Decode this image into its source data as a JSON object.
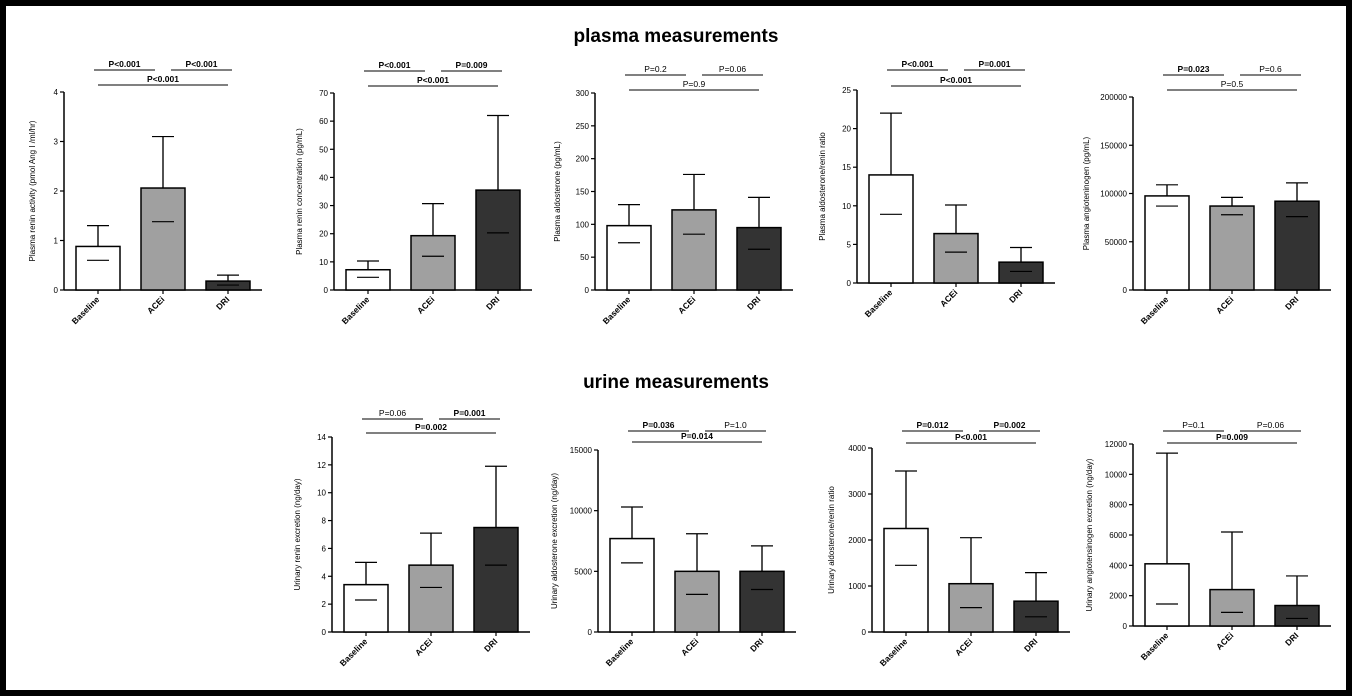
{
  "section_titles": {
    "plasma": "plasma measurements",
    "urine": "urine measurements"
  },
  "colors": {
    "Baseline": "#ffffff",
    "ACEi": "#a0a0a0",
    "DRI": "#333333"
  },
  "chart_data": [
    {
      "type": "bar",
      "categories": [
        "Baseline",
        "ACEi",
        "DRI"
      ],
      "values": [
        0.88,
        2.06,
        0.18
      ],
      "error_low": [
        0.6,
        1.38,
        0.1
      ],
      "error_high": [
        1.3,
        3.1,
        0.3
      ],
      "ylabel": "Plasma renin activity (pmol Ang I /ml/hr)",
      "ylim": [
        0,
        4
      ],
      "yticks": [
        0,
        1,
        2,
        3,
        4
      ],
      "comparisons": [
        {
          "from": 0,
          "to": 1,
          "label": "P<0.001",
          "bold": true,
          "level": 0
        },
        {
          "from": 1,
          "to": 2,
          "label": "P<0.001",
          "bold": true,
          "level": 0
        },
        {
          "from": 0,
          "to": 2,
          "label": "P<0.001",
          "bold": true,
          "level": 1
        }
      ]
    },
    {
      "type": "bar",
      "categories": [
        "Baseline",
        "ACEi",
        "DRI"
      ],
      "values": [
        7.2,
        19.3,
        35.5
      ],
      "error_low": [
        4.5,
        12,
        20.3
      ],
      "error_high": [
        10.3,
        30.7,
        62
      ],
      "ylabel": "Plasma renin concentration (pg/mL)",
      "ylim": [
        0,
        70
      ],
      "yticks": [
        0,
        10,
        20,
        30,
        40,
        50,
        60,
        70
      ],
      "comparisons": [
        {
          "from": 0,
          "to": 1,
          "label": "P<0.001",
          "bold": true,
          "level": 0
        },
        {
          "from": 1,
          "to": 2,
          "label": "P=0.009",
          "bold": true,
          "level": 0
        },
        {
          "from": 0,
          "to": 2,
          "label": "P<0.001",
          "bold": true,
          "level": 1
        }
      ]
    },
    {
      "type": "bar",
      "categories": [
        "Baseline",
        "ACEi",
        "DRI"
      ],
      "values": [
        98,
        122,
        95
      ],
      "error_low": [
        72,
        85,
        62
      ],
      "error_high": [
        130,
        176,
        141
      ],
      "ylabel": "Plasma aldosterone (pg/mL)",
      "ylim": [
        0,
        300
      ],
      "yticks": [
        0,
        50,
        100,
        150,
        200,
        250,
        300
      ],
      "comparisons": [
        {
          "from": 0,
          "to": 1,
          "label": "P=0.2",
          "bold": false,
          "level": 0
        },
        {
          "from": 1,
          "to": 2,
          "label": "P=0.06",
          "bold": false,
          "level": 0
        },
        {
          "from": 0,
          "to": 2,
          "label": "P=0.9",
          "bold": false,
          "level": 1
        }
      ]
    },
    {
      "type": "bar",
      "categories": [
        "Baseline",
        "ACEi",
        "DRI"
      ],
      "values": [
        14,
        6.4,
        2.7
      ],
      "error_low": [
        8.9,
        4,
        1.5
      ],
      "error_high": [
        22,
        10.1,
        4.6
      ],
      "ylabel": "Plasma aldosterone/renin ratio",
      "ylim": [
        0,
        25
      ],
      "yticks": [
        0,
        5,
        10,
        15,
        20,
        25
      ],
      "comparisons": [
        {
          "from": 0,
          "to": 1,
          "label": "P<0.001",
          "bold": true,
          "level": 0
        },
        {
          "from": 1,
          "to": 2,
          "label": "P=0.001",
          "bold": true,
          "level": 0
        },
        {
          "from": 0,
          "to": 2,
          "label": "P<0.001",
          "bold": true,
          "level": 1
        }
      ]
    },
    {
      "type": "bar",
      "categories": [
        "Baseline",
        "ACEi",
        "DRI"
      ],
      "values": [
        97500,
        87000,
        92000
      ],
      "error_low": [
        87000,
        78000,
        76000
      ],
      "error_high": [
        109000,
        96000,
        111000
      ],
      "ylabel": "Plasma angioteninogen (pg/mL)",
      "ylim": [
        0,
        200000
      ],
      "yticks": [
        0,
        50000,
        100000,
        150000,
        200000
      ],
      "comparisons": [
        {
          "from": 0,
          "to": 1,
          "label": "P=0.023",
          "bold": true,
          "level": 0
        },
        {
          "from": 1,
          "to": 2,
          "label": "P=0.6",
          "bold": false,
          "level": 0
        },
        {
          "from": 0,
          "to": 2,
          "label": "P=0.5",
          "bold": false,
          "level": 1
        }
      ]
    },
    {
      "type": "bar",
      "categories": [
        "Baseline",
        "ACEi",
        "DRI"
      ],
      "values": [
        3.4,
        4.8,
        7.5
      ],
      "error_low": [
        2.3,
        3.2,
        4.8
      ],
      "error_high": [
        5,
        7.1,
        11.9
      ],
      "ylabel": "Urinary renin excretion (ng/day)",
      "ylim": [
        0,
        14
      ],
      "yticks": [
        0,
        2,
        4,
        6,
        8,
        10,
        12,
        14
      ],
      "comparisons": [
        {
          "from": 0,
          "to": 1,
          "label": "P=0.06",
          "bold": false,
          "level": 0
        },
        {
          "from": 1,
          "to": 2,
          "label": "P=0.001",
          "bold": true,
          "level": 0
        },
        {
          "from": 0,
          "to": 2,
          "label": "P=0.002",
          "bold": true,
          "level": 1
        }
      ]
    },
    {
      "type": "bar",
      "categories": [
        "Baseline",
        "ACEi",
        "DRI"
      ],
      "values": [
        7700,
        5000,
        5000
      ],
      "error_low": [
        5700,
        3100,
        3500
      ],
      "error_high": [
        10300,
        8100,
        7100
      ],
      "ylabel": "Urinary aldosterone excretion (ng/day)",
      "ylim": [
        0,
        15000
      ],
      "yticks": [
        0,
        5000,
        10000,
        15000
      ],
      "comparisons": [
        {
          "from": 0,
          "to": 1,
          "label": "P=0.036",
          "bold": true,
          "level": 0
        },
        {
          "from": 1,
          "to": 2,
          "label": "P=1.0",
          "bold": false,
          "level": 0
        },
        {
          "from": 0,
          "to": 2,
          "label": "P=0.014",
          "bold": true,
          "level": 1
        }
      ]
    },
    {
      "type": "bar",
      "categories": [
        "Baseline",
        "ACEi",
        "DRI"
      ],
      "values": [
        2250,
        1050,
        670
      ],
      "error_low": [
        1450,
        530,
        330
      ],
      "error_high": [
        3500,
        2050,
        1290
      ],
      "ylabel": "Urinary aldosterone/renin ratio",
      "ylim": [
        0,
        4000
      ],
      "yticks": [
        0,
        1000,
        2000,
        3000,
        4000
      ],
      "comparisons": [
        {
          "from": 0,
          "to": 1,
          "label": "P=0.012",
          "bold": true,
          "level": 0
        },
        {
          "from": 1,
          "to": 2,
          "label": "P=0.002",
          "bold": true,
          "level": 0
        },
        {
          "from": 0,
          "to": 2,
          "label": "P<0.001",
          "bold": true,
          "level": 1
        }
      ]
    },
    {
      "type": "bar",
      "categories": [
        "Baseline",
        "ACEi",
        "DRI"
      ],
      "values": [
        4100,
        2400,
        1350
      ],
      "error_low": [
        1450,
        900,
        500
      ],
      "error_high": [
        11400,
        6200,
        3300
      ],
      "ylabel": "Urinary angiotensinogen excretion (ng/day)",
      "ylim": [
        0,
        12000
      ],
      "yticks": [
        0,
        2000,
        4000,
        6000,
        8000,
        10000,
        12000
      ],
      "comparisons": [
        {
          "from": 0,
          "to": 1,
          "label": "P=0.1",
          "bold": false,
          "level": 0
        },
        {
          "from": 1,
          "to": 2,
          "label": "P=0.06",
          "bold": false,
          "level": 0
        },
        {
          "from": 0,
          "to": 2,
          "label": "P=0.009",
          "bold": true,
          "level": 1
        }
      ]
    }
  ]
}
